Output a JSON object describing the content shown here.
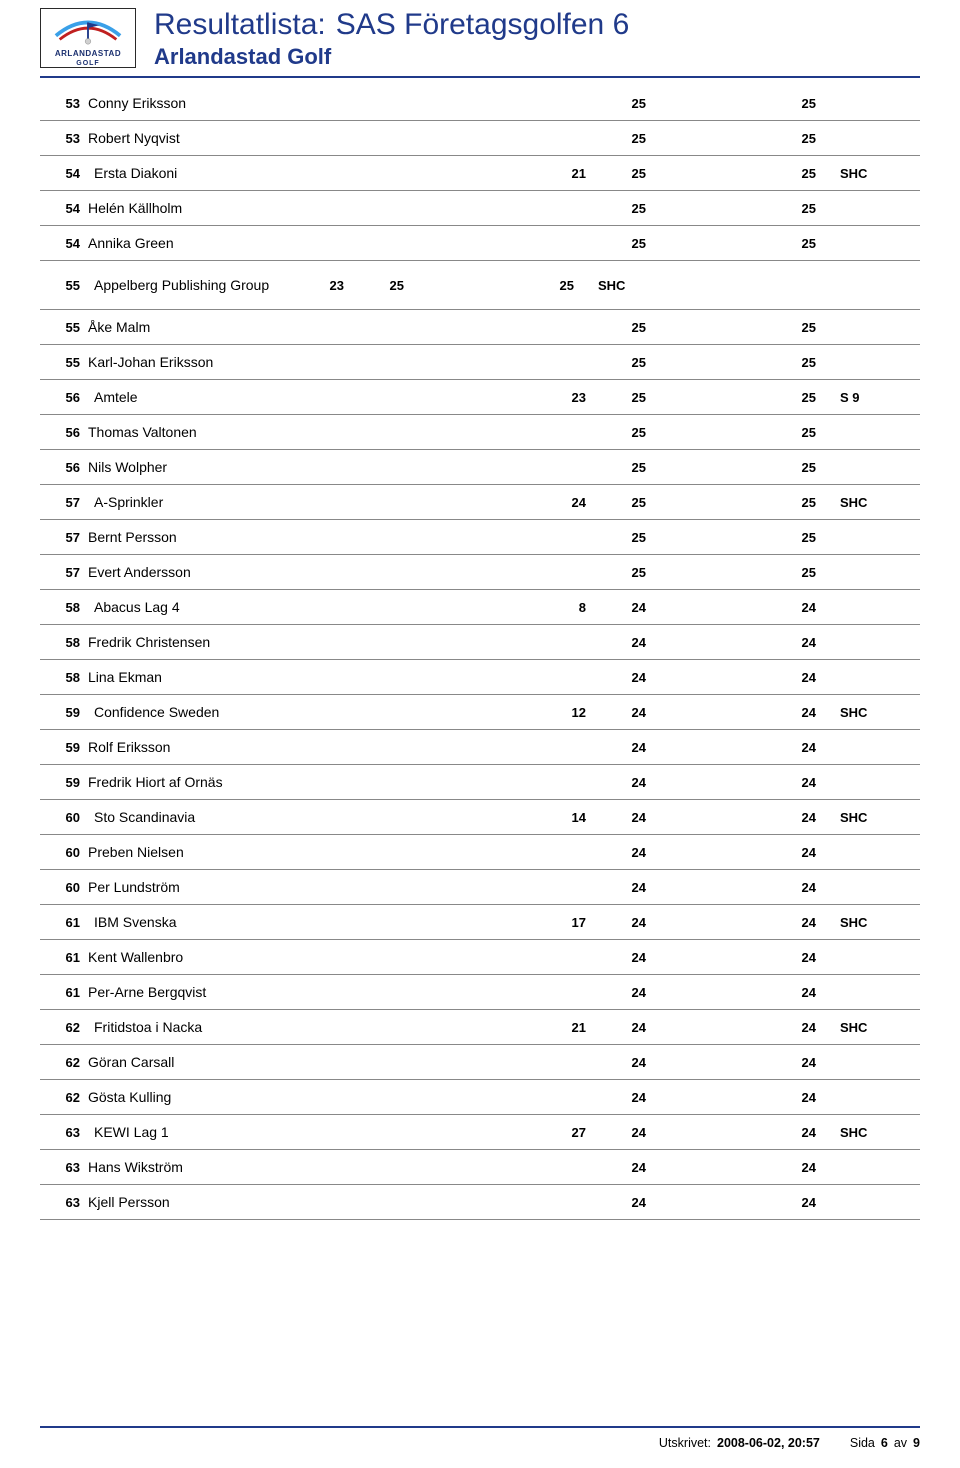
{
  "header": {
    "title_prefix": "Resultatlista:",
    "title_main": "SAS Företagsgolfen 6",
    "subtitle": "Arlandastad Golf",
    "logo_label": "ARLANDASTAD",
    "logo_sublabel": "GOLF",
    "logo_colors": {
      "arc1": "#3aa0e8",
      "arc2": "#c02020",
      "pin": "#203a8a",
      "ball": "#d0d0d0",
      "border": "#2a2a2a"
    }
  },
  "colors": {
    "rule": "#203a8a",
    "row_border": "#888888",
    "title": "#203a8a",
    "text": "#000000",
    "background": "#ffffff"
  },
  "footer": {
    "printed_label": "Utskrivet:",
    "printed_value": "2008-06-02, 20:57",
    "page_label": "Sida",
    "page_num": "6",
    "of_label": "av",
    "page_total": "9"
  },
  "results": [
    {
      "rank": "53",
      "name": "Conny Eriksson",
      "c2": "",
      "c3": "25",
      "c4": "25",
      "note": "",
      "group": false
    },
    {
      "rank": "53",
      "name": "Robert Nyqvist",
      "c2": "",
      "c3": "25",
      "c4": "25",
      "note": "",
      "group": false
    },
    {
      "rank": "54",
      "name": "Ersta Diakoni",
      "c2": "21",
      "c3": "25",
      "c4": "25",
      "note": "SHC",
      "group": true
    },
    {
      "rank": "54",
      "name": "Helén Källholm",
      "c2": "",
      "c3": "25",
      "c4": "25",
      "note": "",
      "group": false
    },
    {
      "rank": "54",
      "name": "Annika Green",
      "c2": "",
      "c3": "25",
      "c4": "25",
      "note": "",
      "group": false
    },
    {
      "rank": "55",
      "name": "Appelberg Publishing Group",
      "c2": "23",
      "c3": "25",
      "c4": "25",
      "note": "SHC",
      "group": true,
      "tall": true
    },
    {
      "rank": "55",
      "name": "Åke Malm",
      "c2": "",
      "c3": "25",
      "c4": "25",
      "note": "",
      "group": false
    },
    {
      "rank": "55",
      "name": "Karl-Johan Eriksson",
      "c2": "",
      "c3": "25",
      "c4": "25",
      "note": "",
      "group": false
    },
    {
      "rank": "56",
      "name": "Amtele",
      "c2": "23",
      "c3": "25",
      "c4": "25",
      "note": "S 9",
      "group": true
    },
    {
      "rank": "56",
      "name": "Thomas  Valtonen",
      "c2": "",
      "c3": "25",
      "c4": "25",
      "note": "",
      "group": false
    },
    {
      "rank": "56",
      "name": "Nils Wolpher",
      "c2": "",
      "c3": "25",
      "c4": "25",
      "note": "",
      "group": false
    },
    {
      "rank": "57",
      "name": "A-Sprinkler",
      "c2": "24",
      "c3": "25",
      "c4": "25",
      "note": "SHC",
      "group": true
    },
    {
      "rank": "57",
      "name": "Bernt Persson",
      "c2": "",
      "c3": "25",
      "c4": "25",
      "note": "",
      "group": false
    },
    {
      "rank": "57",
      "name": "Evert Andersson",
      "c2": "",
      "c3": "25",
      "c4": "25",
      "note": "",
      "group": false
    },
    {
      "rank": "58",
      "name": "Abacus Lag 4",
      "c2": "8",
      "c3": "24",
      "c4": "24",
      "note": "",
      "group": true
    },
    {
      "rank": "58",
      "name": "Fredrik Christensen",
      "c2": "",
      "c3": "24",
      "c4": "24",
      "note": "",
      "group": false
    },
    {
      "rank": "58",
      "name": "Lina Ekman",
      "c2": "",
      "c3": "24",
      "c4": "24",
      "note": "",
      "group": false
    },
    {
      "rank": "59",
      "name": "Confidence Sweden",
      "c2": "12",
      "c3": "24",
      "c4": "24",
      "note": "SHC",
      "group": true
    },
    {
      "rank": "59",
      "name": "Rolf Eriksson",
      "c2": "",
      "c3": "24",
      "c4": "24",
      "note": "",
      "group": false
    },
    {
      "rank": "59",
      "name": "Fredrik Hiort af Ornäs",
      "c2": "",
      "c3": "24",
      "c4": "24",
      "note": "",
      "group": false
    },
    {
      "rank": "60",
      "name": "Sto Scandinavia",
      "c2": "14",
      "c3": "24",
      "c4": "24",
      "note": "SHC",
      "group": true
    },
    {
      "rank": "60",
      "name": "Preben Nielsen",
      "c2": "",
      "c3": "24",
      "c4": "24",
      "note": "",
      "group": false
    },
    {
      "rank": "60",
      "name": "Per Lundström",
      "c2": "",
      "c3": "24",
      "c4": "24",
      "note": "",
      "group": false
    },
    {
      "rank": "61",
      "name": "IBM Svenska",
      "c2": "17",
      "c3": "24",
      "c4": "24",
      "note": "SHC",
      "group": true
    },
    {
      "rank": "61",
      "name": "Kent Wallenbro",
      "c2": "",
      "c3": "24",
      "c4": "24",
      "note": "",
      "group": false
    },
    {
      "rank": "61",
      "name": "Per-Arne Bergqvist",
      "c2": "",
      "c3": "24",
      "c4": "24",
      "note": "",
      "group": false
    },
    {
      "rank": "62",
      "name": "Fritidstoa i Nacka",
      "c2": "21",
      "c3": "24",
      "c4": "24",
      "note": "SHC",
      "group": true
    },
    {
      "rank": "62",
      "name": "Göran Carsall",
      "c2": "",
      "c3": "24",
      "c4": "24",
      "note": "",
      "group": false
    },
    {
      "rank": "62",
      "name": "Gösta Kulling",
      "c2": "",
      "c3": "24",
      "c4": "24",
      "note": "",
      "group": false
    },
    {
      "rank": "63",
      "name": "KEWI Lag 1",
      "c2": "27",
      "c3": "24",
      "c4": "24",
      "note": "SHC",
      "group": true
    },
    {
      "rank": "63",
      "name": "Hans Wikström",
      "c2": "",
      "c3": "24",
      "c4": "24",
      "note": "",
      "group": false
    },
    {
      "rank": "63",
      "name": "Kjell Persson",
      "c2": "",
      "c3": "24",
      "c4": "24",
      "note": "",
      "group": false
    }
  ]
}
